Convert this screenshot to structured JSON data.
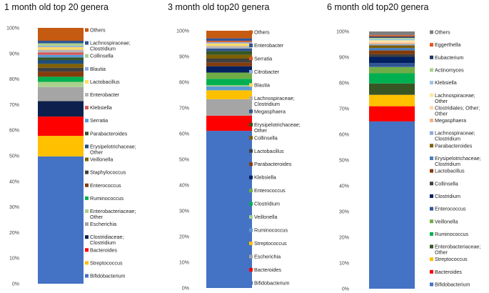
{
  "colors": {
    "Bifidobacterium": "#4472C4",
    "Streptococcus": "#ED7D31",
    "Bacteroides": "#FF0000",
    "Clostridiaceae_Clostridium": "#0D1F4C",
    "Escherichia": "#A5A5A5",
    "Enterobacteriaceae_Other": "#FFC000",
    "Ruminococcus": "#00B050",
    "Enterococcus": "#843C0C",
    "Staphylococcus": "#404040",
    "Veillonella": "#7F6000",
    "Erysipelotrichaceae_Other": "#1F4E79",
    "Parabacteroides": "#375623",
    "Serratia": "#5B9BD5",
    "Klebsiella": "#D45A5A",
    "Enterobacter": "#B4B4B4",
    "Lactobacillus": "#FFD966",
    "Blautia": "#8FAADC",
    "Collinsella": "#A9D18E",
    "Lachnospiraceae_Clostridium": "#2F5597",
    "Others": "#C55A11",
    "Citrobacter": "#9DC3E6",
    "Lachnospiraceae_Other": "#FFE699",
    "Megasphaera": "#F4B183",
    "Clostridium": "#002060",
    "Eggerthella": "#E2561C",
    "Eubacterium": "#203864",
    "Actinomyces": "#70AD47",
    "Clostridiales_Other": "#FFD7A8",
    "Lachnospiraceae_Clostridium6": "#8EA9DB",
    "Erysipelotrichaceae_Clostridium": "#4A7EBB",
    "Others6": "#7F7F7F"
  },
  "chart_data": [
    {
      "type": "bar",
      "stacked": true,
      "title": "1 month old top 20 genera",
      "yticks": [
        "0%",
        "10%",
        "20%",
        "30%",
        "40%",
        "50%",
        "60%",
        "70%",
        "80%",
        "90%",
        "100%"
      ],
      "ylim": [
        0,
        100
      ],
      "series": [
        {
          "name": "Bifidobacterium",
          "label": "Bifidobacterium",
          "color_key": "Bifidobacterium",
          "value": 49.5
        },
        {
          "name": "Streptococcus",
          "label": "Streptococcus",
          "color_key": "Enterobacteriaceae_Other",
          "value": 8.0
        },
        {
          "name": "Bacteroides",
          "label": "Bacteroides",
          "color_key": "Bacteroides",
          "value": 7.5
        },
        {
          "name": "Clostridiaceae; Clostridium",
          "label": [
            "Clostridiaceae;",
            "Clostridium"
          ],
          "color_key": "Clostridiaceae_Clostridium",
          "value": 6.0
        },
        {
          "name": "Escherichia",
          "label": "Escherichia",
          "color_key": "Escherichia",
          "value": 5.5
        },
        {
          "name": "Enterobacteriaceae; Other",
          "label": [
            "Enterobacteriaceae;",
            "Other"
          ],
          "color_key": "Collinsella",
          "value": 2.0
        },
        {
          "name": "Ruminococcus",
          "label": "Ruminococcus",
          "color_key": "Ruminococcus",
          "value": 2.0
        },
        {
          "name": "Enterococcus",
          "label": "Enterococcus",
          "color_key": "Enterococcus",
          "value": 2.0
        },
        {
          "name": "Staphylococcus",
          "label": "Staphylococcus",
          "color_key": "Staphylococcus",
          "value": 1.5
        },
        {
          "name": "Veillonella",
          "label": "Veillonella",
          "color_key": "Veillonella",
          "value": 1.5
        },
        {
          "name": "Erysipelotrichaceae; Other",
          "label": [
            "Erysipelotrichaceae;",
            "Other"
          ],
          "color_key": "Erysipelotrichaceae_Other",
          "value": 1.5
        },
        {
          "name": "Parabacteroides",
          "label": "Parabacteroides",
          "color_key": "Parabacteroides",
          "value": 1.0
        },
        {
          "name": "Serratia",
          "label": "Serratia",
          "color_key": "Serratia",
          "value": 1.0
        },
        {
          "name": "Klebsiella",
          "label": "Klebsiella",
          "color_key": "Klebsiella",
          "value": 1.0
        },
        {
          "name": "Enterobacter",
          "label": "Enterobacter",
          "color_key": "Enterobacter",
          "value": 1.0
        },
        {
          "name": "Lactobacillus",
          "label": "Lactobacillus",
          "color_key": "Lactobacillus",
          "value": 1.0
        },
        {
          "name": "Blautia",
          "label": "Blautia",
          "color_key": "Blautia",
          "value": 0.5
        },
        {
          "name": "Collinsella",
          "label": "Collinsella",
          "color_key": "Collinsella",
          "value": 1.0
        },
        {
          "name": "Lachnospiraceae; Clostridium",
          "label": [
            "Lachnospiraceae;",
            "Clostridium"
          ],
          "color_key": "Lachnospiraceae_Clostridium",
          "value": 1.0
        },
        {
          "name": "Others",
          "label": "Others",
          "color_key": "Others",
          "value": 5.0
        }
      ]
    },
    {
      "type": "bar",
      "stacked": true,
      "title": "3 month old top20 genera",
      "yticks": [
        "0%",
        "10%",
        "20%",
        "30%",
        "40%",
        "50%",
        "60%",
        "70%",
        "80%",
        "90%",
        "100%"
      ],
      "ylim": [
        0,
        100
      ],
      "series": [
        {
          "name": "Bifidobacterium",
          "label": "Bifidobacterium",
          "color_key": "Bifidobacterium",
          "value": 62.0
        },
        {
          "name": "Bacteroides",
          "label": "Bacteroides",
          "color_key": "Bacteroides",
          "value": 6.0
        },
        {
          "name": "Escherichia",
          "label": "Escherichia",
          "color_key": "Escherichia",
          "value": 6.5
        },
        {
          "name": "Streptococcus",
          "label": "Streptococcus",
          "color_key": "Enterobacteriaceae_Other",
          "value": 3.5
        },
        {
          "name": "Ruminococcus",
          "label": "Ruminococcus",
          "color_key": "Serratia",
          "value": 1.5
        },
        {
          "name": "Veillonella",
          "label": "Veillonella",
          "color_key": "Collinsella",
          "value": 0.5
        },
        {
          "name": "Clostridium",
          "label": "Clostridium",
          "color_key": "Ruminococcus",
          "value": 2.5
        },
        {
          "name": "Enterococcus",
          "label": "Enterococcus",
          "color_key": "Actinomyces",
          "value": 2.5
        },
        {
          "name": "Klebsiella",
          "label": "Klebsiella",
          "color_key": "Clostridium",
          "value": 2.5
        },
        {
          "name": "Parabacteroides",
          "label": "Parabacteroides",
          "color_key": "Enterococcus",
          "value": 1.5
        },
        {
          "name": "Lactobacillus",
          "label": "Lactobacillus",
          "color_key": "Staphylococcus",
          "value": 1.5
        },
        {
          "name": "Collinsella",
          "label": "Collinsella",
          "color_key": "Veillonella",
          "value": 1.5
        },
        {
          "name": "Erysipelotrichaceae; Other",
          "label": [
            "Erysipelotrichaceae;",
            "Other"
          ],
          "color_key": "Parabacteroides",
          "value": 1.5
        },
        {
          "name": "Megasphaera",
          "label": "Megasphaera",
          "color_key": "Lachnospiraceae_Clostridium",
          "value": 1.0
        },
        {
          "name": "Lachnospiraceae; Clostridium",
          "label": [
            "Lachnospiraceae;",
            "Clostridium"
          ],
          "color_key": "Enterobacter",
          "value": 1.0
        },
        {
          "name": "Blautia",
          "label": "Blautia",
          "color_key": "Lactobacillus",
          "value": 1.0
        },
        {
          "name": "Citrobacter",
          "label": "Citrobacter",
          "color_key": "Blautia",
          "value": 0.5
        },
        {
          "name": "Serratia",
          "label": "Serratia",
          "color_key": "Eggerthella",
          "value": 0.5
        },
        {
          "name": "Enterobacter",
          "label": "Enterobacter",
          "color_key": "Lachnospiraceae_Clostridium",
          "value": 1.0
        },
        {
          "name": "Others",
          "label": "Others",
          "color_key": "Others",
          "value": 3.0
        }
      ]
    },
    {
      "type": "bar",
      "stacked": true,
      "title": "6 month old top20 genera",
      "yticks": [
        "0%",
        "10%",
        "20%",
        "30%",
        "40%",
        "50%",
        "60%",
        "70%",
        "80%",
        "90%",
        "100%"
      ],
      "ylim": [
        0,
        100
      ],
      "series": [
        {
          "name": "Bifidobacterium",
          "label": "Bifidobacterium",
          "color_key": "Bifidobacterium",
          "value": 66.0
        },
        {
          "name": "Bacteroides",
          "label": "Bacteroides",
          "color_key": "Bacteroides",
          "value": 6.0
        },
        {
          "name": "Streptococcus",
          "label": "Streptococcus",
          "color_key": "Enterobacteriaceae_Other",
          "value": 4.5
        },
        {
          "name": "Enterobacteriaceae; Other",
          "label": [
            "Enterobacteriaceae;",
            "Other"
          ],
          "color_key": "Parabacteroides",
          "value": 4.5
        },
        {
          "name": "Ruminococcus",
          "label": "Ruminococcus",
          "color_key": "Ruminococcus",
          "value": 4.0
        },
        {
          "name": "Veillonella",
          "label": "Veillonella",
          "color_key": "Actinomyces",
          "value": 2.5
        },
        {
          "name": "Enterococcus",
          "label": "Enterococcus",
          "color_key": "Lachnospiraceae_Clostridium",
          "value": 1.5
        },
        {
          "name": "Clostridium",
          "label": "Clostridium",
          "color_key": "Clostridium",
          "value": 2.5
        },
        {
          "name": "Collinsella",
          "label": "Collinsella",
          "color_key": "Staphylococcus",
          "value": 1.0
        },
        {
          "name": "Lactobacillus",
          "label": "Lactobacillus",
          "color_key": "Enterococcus",
          "value": 1.5
        },
        {
          "name": "Erysipelotrichaceae; Clostridium",
          "label": [
            "Erysipelotrichaceae;",
            "Clostridium"
          ],
          "color_key": "Erysipelotrichaceae_Clostridium",
          "value": 1.0
        },
        {
          "name": "Parabacteroides",
          "label": "Parabacteroides",
          "color_key": "Veillonella",
          "value": 1.0
        },
        {
          "name": "Lachnospiraceae; Clostridium",
          "label": [
            "Lachnospiraceae;",
            "Clostridium"
          ],
          "color_key": "Lachnospiraceae_Clostridium6",
          "value": 0.5
        },
        {
          "name": "Megasphaera",
          "label": "Megasphaera",
          "color_key": "Megasphaera",
          "value": 0.5
        },
        {
          "name": "Clostridiales; Other; Other",
          "label": [
            "Clostridiales; Other;",
            "Other"
          ],
          "color_key": "Clostridiales_Other",
          "value": 0.5
        },
        {
          "name": "Lachnospiraceae; Other",
          "label": [
            "Lachnospiraceae;",
            "Other"
          ],
          "color_key": "Lachnospiraceae_Other",
          "value": 0.5
        },
        {
          "name": "Klebsiella",
          "label": "Klebsiella",
          "color_key": "Citrobacter",
          "value": 0.5
        },
        {
          "name": "Actinomyces",
          "label": "Actinomyces",
          "color_key": "Collinsella",
          "value": 0.5
        },
        {
          "name": "Eubacterium",
          "label": "Eubacterium",
          "color_key": "Eubacterium",
          "value": 0.5
        },
        {
          "name": "Eggerthella",
          "label": "Eggerthella",
          "color_key": "Eggerthella",
          "value": 0.5
        },
        {
          "name": "Others",
          "label": "Others",
          "color_key": "Others6",
          "value": 1.5
        }
      ]
    }
  ]
}
